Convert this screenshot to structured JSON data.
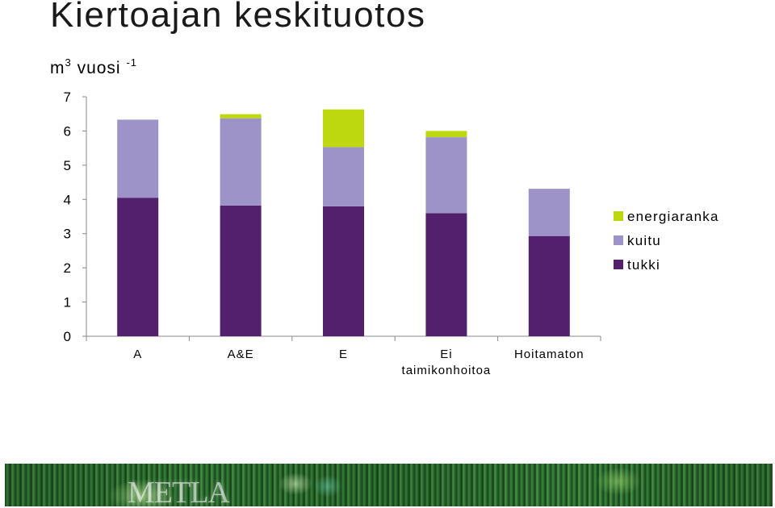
{
  "title": "Kiertoajan keskituotos",
  "unit": {
    "base": "m",
    "exp": "3",
    "text": "vuosi",
    "exp2": "-1"
  },
  "footer": {
    "logo_text": "METLA"
  },
  "colors": {
    "energiaranka": "#bed80f",
    "kuitu": "#9d93c8",
    "tukki": "#53206e"
  },
  "chart_data": {
    "type": "bar",
    "stacked": true,
    "title": "Kiertoajan keskituotos",
    "xlabel": "",
    "ylabel": "m3 vuosi -1",
    "ylim": [
      0,
      7
    ],
    "yticks": [
      0,
      1,
      2,
      3,
      4,
      5,
      6,
      7
    ],
    "grid": false,
    "legend_position": "right",
    "categories": [
      "A",
      "A&E",
      "E",
      "Ei taimikonhoitoa",
      "Hoitamaton"
    ],
    "category_lines": [
      [
        "A"
      ],
      [
        "A&E"
      ],
      [
        "E"
      ],
      [
        "Ei",
        "taimikonhoitoa"
      ],
      [
        "Hoitamaton"
      ]
    ],
    "series": [
      {
        "name": "tukki",
        "values": [
          4.05,
          3.82,
          3.8,
          3.6,
          2.93
        ]
      },
      {
        "name": "kuitu",
        "values": [
          2.28,
          2.55,
          1.73,
          2.22,
          1.38
        ]
      },
      {
        "name": "energiaranka",
        "values": [
          0,
          0.12,
          1.1,
          0.18,
          0
        ]
      }
    ],
    "legend_order": [
      "energiaranka",
      "kuitu",
      "tukki"
    ]
  }
}
